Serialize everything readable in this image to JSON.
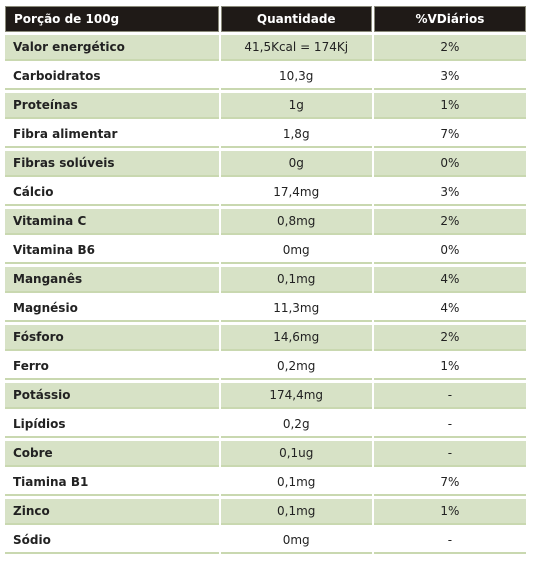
{
  "table": {
    "headers": {
      "name": "Porção de 100g",
      "quantity": "Quantidade",
      "daily_value": "%VDiários"
    },
    "rows": [
      {
        "name": "Valor energético",
        "quantity": "41,5Kcal = 174Kj",
        "daily_value": "2%"
      },
      {
        "name": "Carboidratos",
        "quantity": "10,3g",
        "daily_value": "3%"
      },
      {
        "name": "Proteínas",
        "quantity": "1g",
        "daily_value": "1%"
      },
      {
        "name": "Fibra alimentar",
        "quantity": "1,8g",
        "daily_value": "7%"
      },
      {
        "name": "Fibras solúveis",
        "quantity": "0g",
        "daily_value": "0%"
      },
      {
        "name": "Cálcio",
        "quantity": "17,4mg",
        "daily_value": "3%"
      },
      {
        "name": "Vitamina C",
        "quantity": "0,8mg",
        "daily_value": "2%"
      },
      {
        "name": "Vitamina B6",
        "quantity": "0mg",
        "daily_value": "0%"
      },
      {
        "name": "Manganês",
        "quantity": "0,1mg",
        "daily_value": "4%"
      },
      {
        "name": "Magnésio",
        "quantity": "11,3mg",
        "daily_value": "4%"
      },
      {
        "name": "Fósforo",
        "quantity": "14,6mg",
        "daily_value": "2%"
      },
      {
        "name": "Ferro",
        "quantity": "0,2mg",
        "daily_value": "1%"
      },
      {
        "name": "Potássio",
        "quantity": "174,4mg",
        "daily_value": "-"
      },
      {
        "name": "Lipídios",
        "quantity": "0,2g",
        "daily_value": "-"
      },
      {
        "name": "Cobre",
        "quantity": "0,1ug",
        "daily_value": "-"
      },
      {
        "name": "Tiamina B1",
        "quantity": "0,1mg",
        "daily_value": "7%"
      },
      {
        "name": "Zinco",
        "quantity": "0,1mg",
        "daily_value": "1%"
      },
      {
        "name": "Sódio",
        "quantity": "0mg",
        "daily_value": "-"
      }
    ]
  },
  "colors": {
    "header_bg": "#1f1a17",
    "header_text": "#ffffff",
    "row_shaded": "#d7e2c6",
    "row_plain": "#ffffff",
    "row_divider": "#c9d8b0"
  }
}
